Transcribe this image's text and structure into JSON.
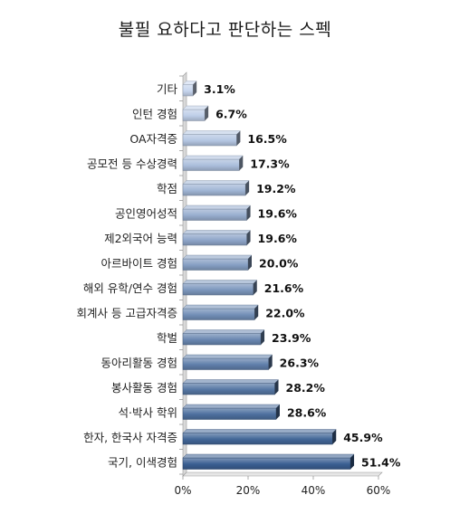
{
  "chart_data": {
    "type": "bar",
    "orientation": "horizontal",
    "title": "불필 요하다고 판단하는 스펙",
    "categories": [
      "기타",
      "인턴 경험",
      "OA자격증",
      "공모전 등 수상경력",
      "학점",
      "공인영어성적",
      "제2외국어 능력",
      "아르바이트 경험",
      "해외 유학/연수 경험",
      "회계사 등 고급자격증",
      "학벌",
      "동아리활동 경험",
      "봉사활동 경험",
      "석·박사 학위",
      "한자, 한국사 자격증",
      "국기, 이색경험"
    ],
    "values": [
      3.1,
      6.7,
      16.5,
      17.3,
      19.2,
      19.6,
      19.6,
      20.0,
      21.6,
      22.0,
      23.9,
      26.3,
      28.2,
      28.6,
      45.9,
      51.4
    ],
    "value_labels": [
      "3.1%",
      "6.7%",
      "16.5%",
      "17.3%",
      "19.2%",
      "19.6%",
      "19.6%",
      "20.0%",
      "21.6%",
      "22.0%",
      "23.9%",
      "26.3%",
      "28.2%",
      "28.6%",
      "45.9%",
      "51.4%"
    ],
    "xlim": [
      0,
      60
    ],
    "x_ticks": [
      0,
      20,
      40,
      60
    ],
    "x_tick_labels": [
      "0%",
      "20%",
      "40%",
      "60%"
    ],
    "grid": false,
    "bar_color_light": "#c7d6ee",
    "bar_color_dark": "#3a5f92"
  }
}
